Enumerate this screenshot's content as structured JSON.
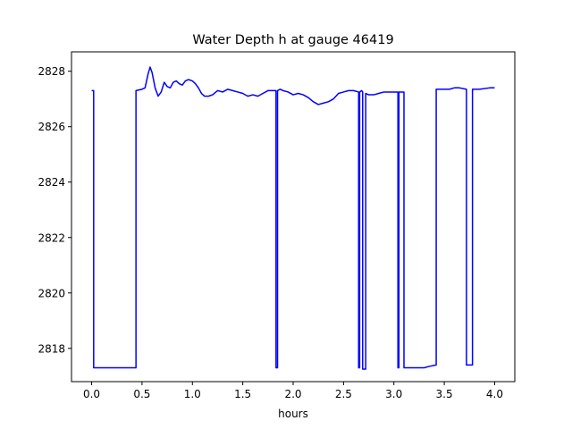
{
  "chart_data": {
    "type": "line",
    "title": "Water Depth h at gauge 46419",
    "xlabel": "hours",
    "ylabel": "",
    "xlim": [
      -0.2,
      4.2
    ],
    "ylim": [
      2816.8,
      2828.7
    ],
    "xticks": [
      0.0,
      0.5,
      1.0,
      1.5,
      2.0,
      2.5,
      3.0,
      3.5,
      4.0
    ],
    "xtick_labels": [
      "0.0",
      "0.5",
      "1.0",
      "1.5",
      "2.0",
      "2.5",
      "3.0",
      "3.5",
      "4.0"
    ],
    "yticks": [
      2818,
      2820,
      2822,
      2824,
      2826,
      2828
    ],
    "ytick_labels": [
      "2818",
      "2820",
      "2822",
      "2824",
      "2826",
      "2828"
    ],
    "grid": false,
    "line_color": "#0000ff",
    "series": [
      {
        "x": [
          0.0,
          0.02,
          0.02,
          0.44,
          0.44,
          0.5,
          0.53,
          0.56,
          0.58,
          0.6,
          0.63,
          0.66,
          0.69,
          0.72,
          0.75,
          0.78,
          0.81,
          0.84,
          0.87,
          0.9,
          0.93,
          0.96,
          1.0,
          1.03,
          1.06,
          1.09,
          1.12,
          1.16,
          1.2,
          1.25,
          1.3,
          1.35,
          1.4,
          1.45,
          1.5,
          1.55,
          1.6,
          1.65,
          1.7,
          1.75,
          1.8,
          1.83,
          1.83,
          1.845,
          1.845,
          1.87,
          1.9,
          1.95,
          2.0,
          2.05,
          2.1,
          2.15,
          2.2,
          2.25,
          2.3,
          2.35,
          2.4,
          2.45,
          2.5,
          2.55,
          2.6,
          2.65,
          2.65,
          2.66,
          2.66,
          2.68,
          2.69,
          2.69,
          2.72,
          2.72,
          2.75,
          2.8,
          2.85,
          2.9,
          2.95,
          3.0,
          3.04,
          3.04,
          3.05,
          3.05,
          3.08,
          3.1,
          3.1,
          3.2,
          3.3,
          3.35,
          3.42,
          3.42,
          3.5,
          3.55,
          3.6,
          3.65,
          3.72,
          3.72,
          3.78,
          3.78,
          3.85,
          3.95,
          4.0
        ],
        "y": [
          2827.3,
          2827.3,
          2817.3,
          2817.3,
          2827.3,
          2827.35,
          2827.4,
          2827.9,
          2828.15,
          2827.95,
          2827.4,
          2827.1,
          2827.25,
          2827.6,
          2827.45,
          2827.4,
          2827.6,
          2827.65,
          2827.55,
          2827.5,
          2827.65,
          2827.7,
          2827.65,
          2827.55,
          2827.4,
          2827.2,
          2827.1,
          2827.1,
          2827.15,
          2827.3,
          2827.25,
          2827.35,
          2827.3,
          2827.25,
          2827.2,
          2827.1,
          2827.15,
          2827.1,
          2827.2,
          2827.3,
          2827.3,
          2827.3,
          2817.3,
          2817.3,
          2827.3,
          2827.35,
          2827.3,
          2827.25,
          2827.15,
          2827.2,
          2827.15,
          2827.05,
          2826.9,
          2826.8,
          2826.85,
          2826.9,
          2827.0,
          2827.2,
          2827.25,
          2827.3,
          2827.3,
          2827.25,
          2817.3,
          2817.3,
          2827.25,
          2827.3,
          2827.25,
          2817.25,
          2817.25,
          2827.2,
          2827.15,
          2827.15,
          2827.2,
          2827.25,
          2827.25,
          2827.25,
          2827.25,
          2817.3,
          2817.3,
          2827.25,
          2827.25,
          2827.25,
          2817.3,
          2817.3,
          2817.3,
          2817.35,
          2817.4,
          2827.35,
          2827.35,
          2827.35,
          2827.4,
          2827.4,
          2827.35,
          2817.4,
          2817.4,
          2827.35,
          2827.35,
          2827.4,
          2827.4
        ]
      }
    ]
  }
}
